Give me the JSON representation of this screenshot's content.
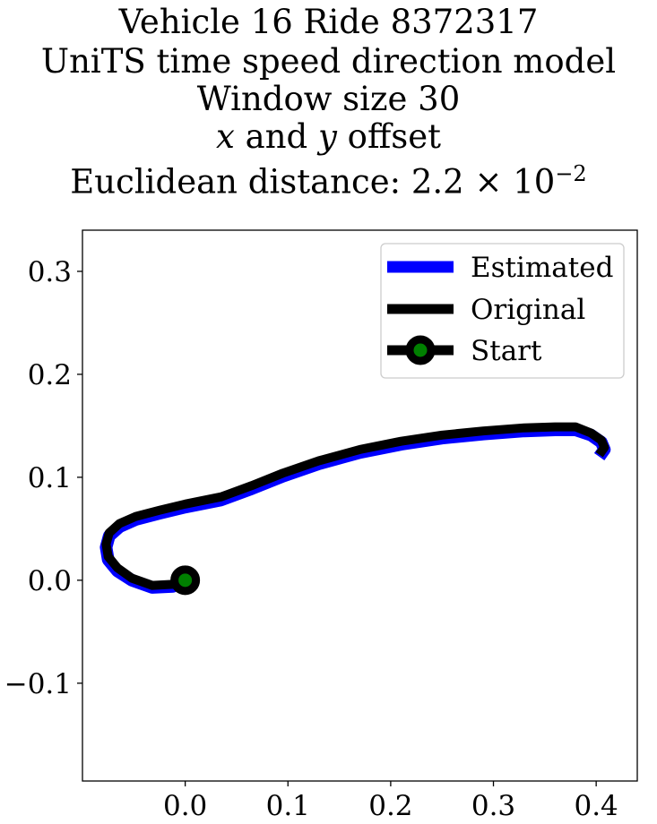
{
  "title_lines": {
    "line1": "Vehicle 16 Ride 8372317",
    "line2": "UniTS time speed direction model",
    "line3": "Window size 30",
    "line4_var_x": "x",
    "line4_and": " and ",
    "line4_var_y": "y",
    "line4_rest": " offset",
    "line5_prefix": "Euclidean distance: 2.2 × 10",
    "line5_exp": "−2"
  },
  "chart_data": {
    "type": "line",
    "title": "Vehicle 16 Ride 8372317\nUniTS time speed direction model\nWindow size 30\nx and y offset\nEuclidean distance: 2.2 × 10^-2",
    "xlabel": "",
    "ylabel": "",
    "xlim": [
      -0.1,
      0.44
    ],
    "ylim": [
      -0.195,
      0.34
    ],
    "x_ticks": [
      0.0,
      0.1,
      0.2,
      0.3,
      0.4
    ],
    "x_tick_labels": [
      "0.0",
      "0.1",
      "0.2",
      "0.3",
      "0.4"
    ],
    "y_ticks": [
      -0.1,
      0.0,
      0.1,
      0.2,
      0.3
    ],
    "y_tick_labels": [
      "−0.1",
      "0.0",
      "0.1",
      "0.2",
      "0.3"
    ],
    "grid": false,
    "legend_position": "top-right",
    "series": [
      {
        "name": "Estimated",
        "color": "#0000ff",
        "x": [
          0.0,
          -0.012,
          -0.032,
          -0.052,
          -0.066,
          -0.075,
          -0.077,
          -0.074,
          -0.064,
          -0.048,
          -0.025,
          0.0,
          0.035,
          0.065,
          0.095,
          0.13,
          0.17,
          0.21,
          0.25,
          0.29,
          0.33,
          0.36,
          0.38,
          0.395,
          0.405,
          0.408,
          0.403
        ],
        "y": [
          0.0,
          -0.006,
          -0.007,
          0.0,
          0.009,
          0.02,
          0.032,
          0.043,
          0.052,
          0.059,
          0.065,
          0.071,
          0.078,
          0.089,
          0.101,
          0.113,
          0.124,
          0.132,
          0.138,
          0.142,
          0.145,
          0.146,
          0.146,
          0.141,
          0.134,
          0.127,
          0.12
        ]
      },
      {
        "name": "Original",
        "color": "#000000",
        "x": [
          0.0,
          -0.012,
          -0.032,
          -0.052,
          -0.066,
          -0.075,
          -0.077,
          -0.074,
          -0.064,
          -0.048,
          -0.025,
          0.0,
          0.035,
          0.065,
          0.095,
          0.13,
          0.17,
          0.21,
          0.25,
          0.29,
          0.33,
          0.36,
          0.38,
          0.395,
          0.405,
          0.408,
          0.403
        ],
        "y": [
          0.0,
          -0.004,
          -0.005,
          0.002,
          0.012,
          0.023,
          0.035,
          0.046,
          0.055,
          0.062,
          0.068,
          0.074,
          0.081,
          0.092,
          0.104,
          0.116,
          0.127,
          0.135,
          0.141,
          0.145,
          0.148,
          0.149,
          0.149,
          0.143,
          0.136,
          0.129,
          0.122
        ]
      },
      {
        "name": "Start",
        "color": "#000000",
        "marker_color": "#008000",
        "x": [
          0.0
        ],
        "y": [
          0.0
        ]
      }
    ]
  }
}
